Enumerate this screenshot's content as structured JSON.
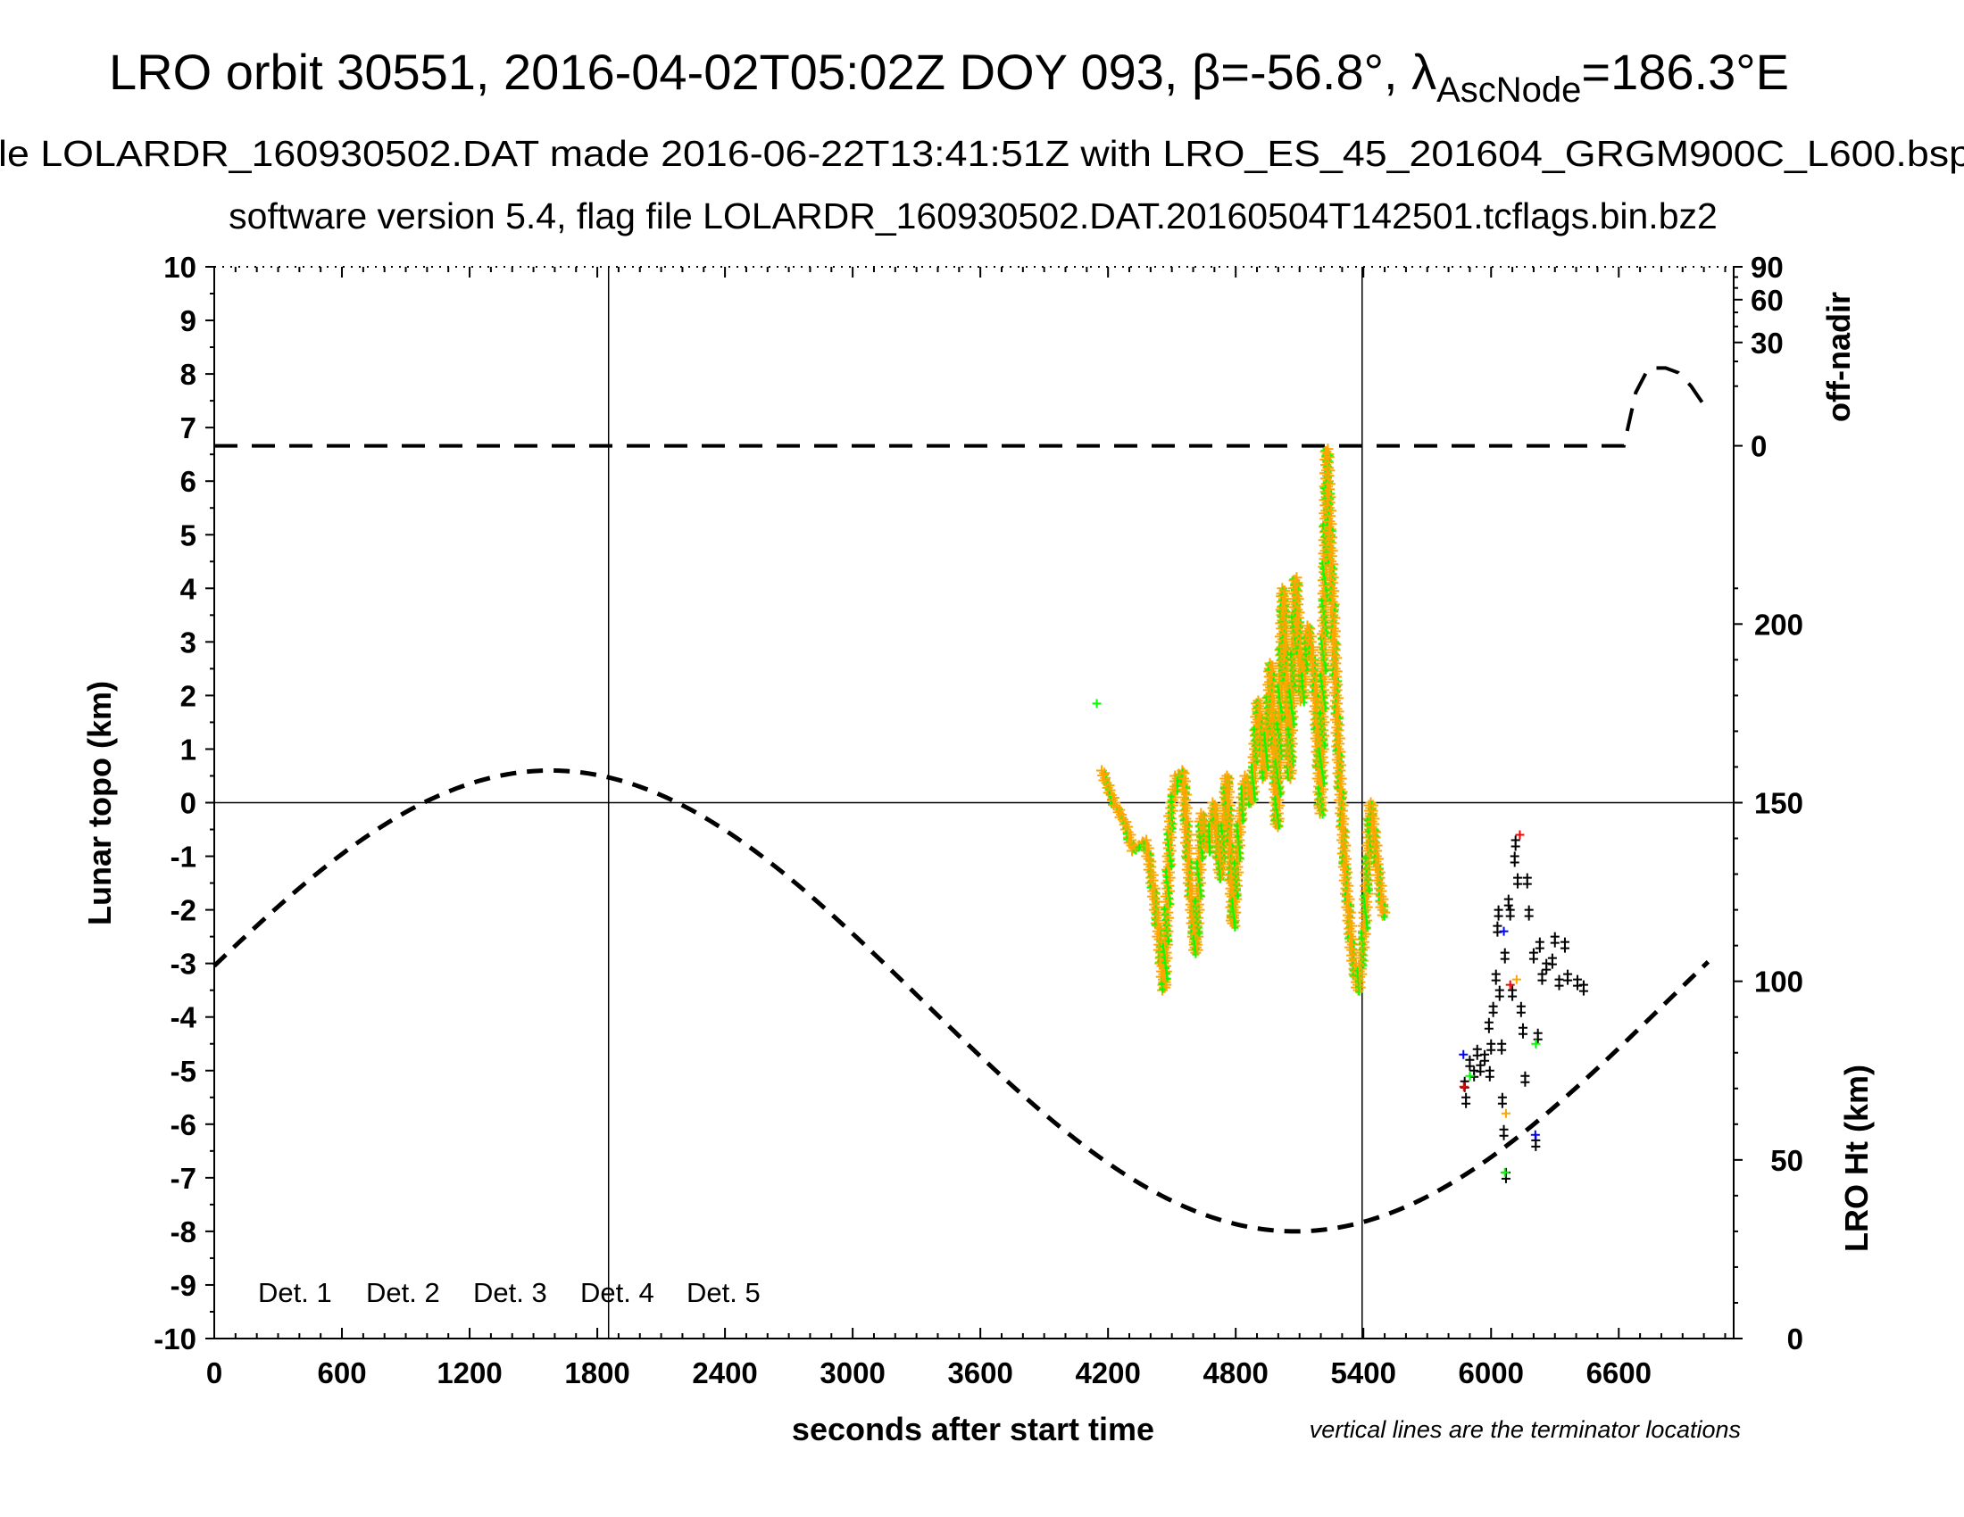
{
  "title": {
    "main_prefix": "LRO orbit 30551, 2016-04-02T05:02Z DOY 093, β=-56.8°, λ",
    "main_sub": "AscNode",
    "main_suffix": "=186.3°E",
    "line2": "le LOLARDR_160930502.DAT made 2016-06-22T13:41:51Z with LRO_ES_45_201604_GRGM900C_L600.bsp",
    "line3": "software version 5.4, flag file LOLARDR_160930502.DAT.20160504T142501.tcflags.bin.bz2"
  },
  "chart_data": {
    "type": "scatter",
    "xlabel": "seconds after start time",
    "ylabel": "Lunar topo (km)",
    "y2label_top": "off-nadir",
    "y2label_bottom": "LRO Ht (km)",
    "note": "vertical lines are the terminator locations",
    "xlim": [
      0,
      7140
    ],
    "ylim": [
      -10,
      10
    ],
    "x_ticks": [
      "0",
      "600",
      "1200",
      "1800",
      "2400",
      "3000",
      "3600",
      "4200",
      "4800",
      "5400",
      "6000",
      "6600"
    ],
    "y_ticks": [
      "10",
      "9",
      "8",
      "7",
      "6",
      "5",
      "4",
      "3",
      "2",
      "1",
      "0",
      "-1",
      "-2",
      "-3",
      "-4",
      "-5",
      "-6",
      "-7",
      "-8",
      "-9",
      "-10"
    ],
    "offnadir_ticks": [
      "90",
      "60",
      "30",
      "0"
    ],
    "ht_ticks": [
      "200",
      "150",
      "100",
      "50",
      "0"
    ],
    "ht_range_km": [
      0,
      300
    ],
    "terminators": [
      1853,
      5394
    ],
    "grid": "zero line and terminator lines",
    "legend": [
      {
        "label": "Det. 1",
        "color": "#000000"
      },
      {
        "label": "Det. 2",
        "color": "#0000ff"
      },
      {
        "label": "Det. 3",
        "color": "#00ff00"
      },
      {
        "label": "Det. 4",
        "color": "#ffa500"
      },
      {
        "label": "Det. 5",
        "color": "#ff0000"
      }
    ],
    "legend_placement": "bottom-left",
    "lro_height_km": {
      "t": [
        0,
        500,
        1000,
        1500,
        2000,
        2500,
        3000,
        3500,
        4000,
        4500,
        5000,
        5500,
        6000,
        6500,
        7000
      ],
      "km": [
        104.3,
        131.1,
        150.4,
        158.8,
        154.5,
        138.2,
        113.3,
        84.7,
        58.0,
        38.5,
        30.2,
        34.5,
        50.7,
        75.7,
        104.2
      ]
    },
    "off_nadir_deg": {
      "t": [
        0,
        6624,
        6680,
        6740,
        6820,
        6880,
        6940,
        7010
      ],
      "deg": [
        0,
        0,
        8,
        17,
        17,
        15,
        10,
        4
      ]
    },
    "topo_profile_det3_det4": [
      [
        4147,
        1.85
      ],
      [
        4170,
        0.6
      ],
      [
        4229,
        0.0
      ],
      [
        4288,
        -0.45
      ],
      [
        4317,
        -0.9
      ],
      [
        4376,
        -0.7
      ],
      [
        4406,
        -1.4
      ],
      [
        4435,
        -2.3
      ],
      [
        4464,
        -3.5
      ],
      [
        4494,
        -0.2
      ],
      [
        4523,
        0.5
      ],
      [
        4553,
        0.6
      ],
      [
        4582,
        -1.4
      ],
      [
        4612,
        -2.8
      ],
      [
        4641,
        -0.2
      ],
      [
        4670,
        -0.9
      ],
      [
        4700,
        0.0
      ],
      [
        4729,
        -1.4
      ],
      [
        4759,
        0.5
      ],
      [
        4788,
        -2.3
      ],
      [
        4817,
        -0.45
      ],
      [
        4847,
        0.5
      ],
      [
        4876,
        0.0
      ],
      [
        4906,
        1.9
      ],
      [
        4935,
        0.45
      ],
      [
        4965,
        2.6
      ],
      [
        4994,
        -0.45
      ],
      [
        5023,
        4.0
      ],
      [
        5053,
        0.45
      ],
      [
        5082,
        4.2
      ],
      [
        5112,
        1.9
      ],
      [
        5141,
        3.3
      ],
      [
        5170,
        2.4
      ],
      [
        5200,
        -0.2
      ],
      [
        5229,
        6.6
      ],
      [
        5259,
        3.3
      ],
      [
        5288,
        0.5
      ],
      [
        5317,
        -1.4
      ],
      [
        5347,
        -2.8
      ],
      [
        5376,
        -3.5
      ],
      [
        5406,
        -2.3
      ],
      [
        5435,
        0.0
      ],
      [
        5465,
        -1.15
      ],
      [
        5494,
        -2.1
      ],
      [
        5512,
        -2.1
      ]
    ],
    "det1_points": [
      [
        5876,
        -5.2
      ],
      [
        5882,
        -5.5
      ],
      [
        5900,
        -4.8
      ],
      [
        5920,
        -5.0
      ],
      [
        5935,
        -4.6
      ],
      [
        5950,
        -4.9
      ],
      [
        5970,
        -4.7
      ],
      [
        5990,
        -4.1
      ],
      [
        5994,
        -5.0
      ],
      [
        6000,
        -4.5
      ],
      [
        6010,
        -3.8
      ],
      [
        6023,
        -3.2
      ],
      [
        6030,
        -2.3
      ],
      [
        6035,
        -2.0
      ],
      [
        6040,
        -3.5
      ],
      [
        6050,
        -4.5
      ],
      [
        6053,
        -5.5
      ],
      [
        6060,
        -6.1
      ],
      [
        6065,
        -2.8
      ],
      [
        6070,
        -6.9
      ],
      [
        6082,
        -1.8
      ],
      [
        6090,
        -2.0
      ],
      [
        6100,
        -3.5
      ],
      [
        6111,
        -1.0
      ],
      [
        6115,
        -0.7
      ],
      [
        6125,
        -1.4
      ],
      [
        6141,
        -3.8
      ],
      [
        6150,
        -4.2
      ],
      [
        6160,
        -5.1
      ],
      [
        6170,
        -1.4
      ],
      [
        6178,
        -2.0
      ],
      [
        6200,
        -2.8
      ],
      [
        6210,
        -6.3
      ],
      [
        6220,
        -4.3
      ],
      [
        6229,
        -2.6
      ],
      [
        6240,
        -3.2
      ],
      [
        6260,
        -3.0
      ],
      [
        6288,
        -2.9
      ],
      [
        6300,
        -2.5
      ],
      [
        6320,
        -3.3
      ],
      [
        6347,
        -2.6
      ],
      [
        6360,
        -3.2
      ],
      [
        6406,
        -3.3
      ],
      [
        6435,
        -3.4
      ]
    ],
    "det2_points": [
      [
        5870,
        -4.7
      ],
      [
        6060,
        -2.4
      ],
      [
        6208,
        -6.2
      ]
    ],
    "det3_points": [
      [
        6065,
        -6.9
      ],
      [
        6210,
        -4.5
      ],
      [
        5900,
        -5.1
      ]
    ],
    "det4_points": [
      [
        6070,
        -5.8
      ],
      [
        6120,
        -3.3
      ]
    ],
    "det5_points": [
      [
        5872,
        -5.3
      ],
      [
        6135,
        -0.6
      ],
      [
        6090,
        -3.4
      ]
    ]
  }
}
